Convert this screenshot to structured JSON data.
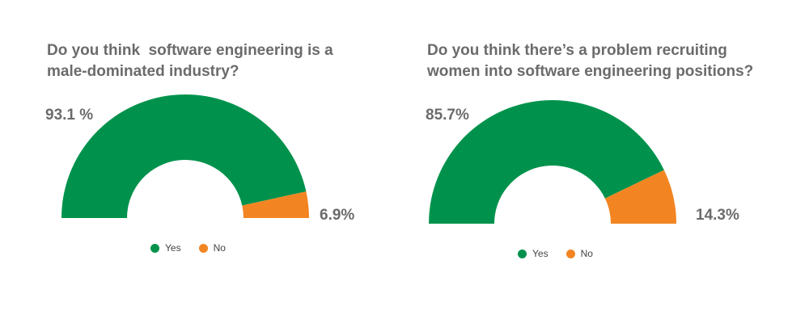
{
  "colors": {
    "yes": "#00924c",
    "no": "#f28522",
    "text": "#6b6b6b"
  },
  "chart_data": [
    {
      "type": "pie",
      "variant": "half-donut",
      "title": "Do you think  software engineering is a male-dominated industry?",
      "categories": [
        "Yes",
        "No"
      ],
      "values": [
        93.1,
        6.9
      ],
      "labels": [
        "93.1 %",
        "6.9%"
      ],
      "legend": "bottom"
    },
    {
      "type": "pie",
      "variant": "half-donut",
      "title": "Do you think there’s a problem recruiting women into software engineering positions?",
      "categories": [
        "Yes",
        "No"
      ],
      "values": [
        85.7,
        14.3
      ],
      "labels": [
        "85.7%",
        "14.3%"
      ],
      "legend": "bottom"
    }
  ]
}
